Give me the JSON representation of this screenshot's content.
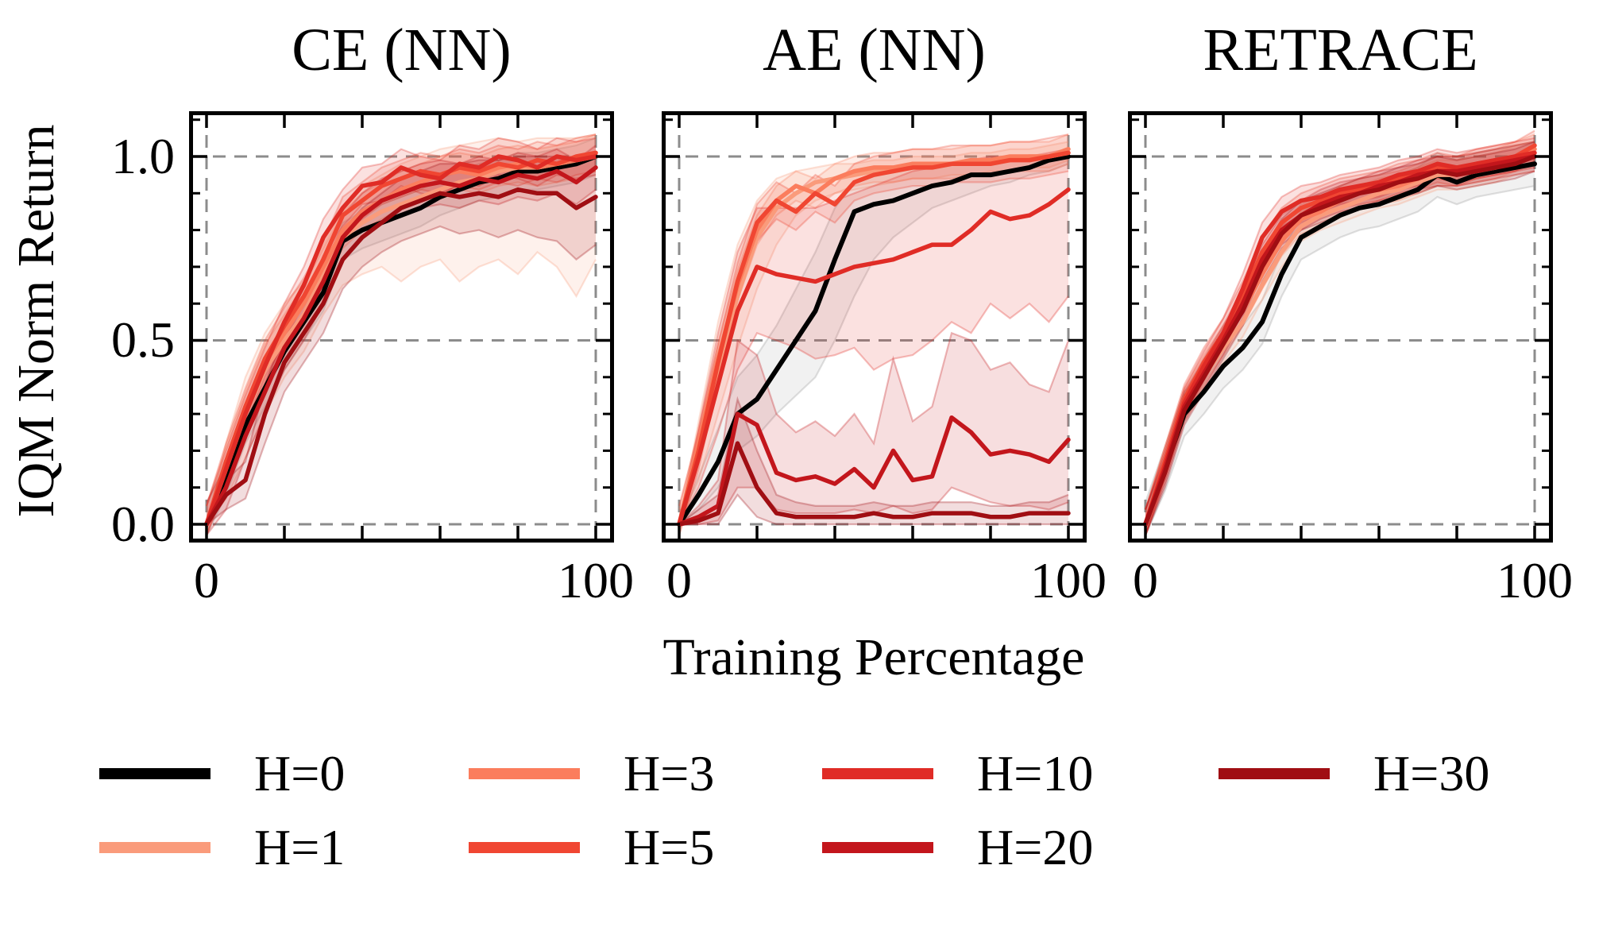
{
  "figure": {
    "ylabel": "IQM Norm Return",
    "xlabel": "Training Percentage",
    "ytick_labels": [
      "1.0",
      "0.5",
      "0.0"
    ],
    "xtick_labels": [
      "0",
      "100"
    ],
    "background": "#ffffff",
    "grid_color": "#8c8c8c",
    "grid_style": "dashed"
  },
  "legend": {
    "entries": [
      {
        "label": "H=0",
        "color": "#000000"
      },
      {
        "label": "H=1",
        "color": "#FA9B7B"
      },
      {
        "label": "H=3",
        "color": "#FB7D5D"
      },
      {
        "label": "H=5",
        "color": "#F04632"
      },
      {
        "label": "H=10",
        "color": "#E02C26"
      },
      {
        "label": "H=20",
        "color": "#C3161C"
      },
      {
        "label": "H=30",
        "color": "#A00E13"
      }
    ],
    "columns": [
      [
        0,
        1
      ],
      [
        2,
        3
      ],
      [
        4,
        5
      ],
      [
        6
      ]
    ],
    "position": "below"
  },
  "chart_data": [
    {
      "type": "line",
      "title": "CE (NN)",
      "xlim": [
        -4.7,
        104.7
      ],
      "ylim": [
        -0.047,
        1.123
      ],
      "xticks": [
        0,
        100
      ],
      "yticks": [
        0.0,
        0.5,
        1.0
      ],
      "grid": true,
      "x": [
        0,
        5,
        10,
        15,
        20,
        25,
        30,
        35,
        40,
        45,
        50,
        55,
        60,
        65,
        70,
        75,
        80,
        85,
        90,
        95,
        100
      ],
      "series": [
        {
          "name": "H=0",
          "color": "#000000",
          "band_color": "#999999",
          "band_pm": 0.05,
          "values": [
            0,
            0.13,
            0.27,
            0.37,
            0.47,
            0.55,
            0.63,
            0.77,
            0.8,
            0.82,
            0.84,
            0.86,
            0.89,
            0.91,
            0.93,
            0.94,
            0.96,
            0.96,
            0.97,
            0.98,
            1.0
          ]
        },
        {
          "name": "H=1",
          "color": "#FA9B7B",
          "values": [
            0,
            0.15,
            0.3,
            0.42,
            0.5,
            0.57,
            0.68,
            0.78,
            0.82,
            0.85,
            0.87,
            0.89,
            0.91,
            0.93,
            0.94,
            0.96,
            0.97,
            0.97,
            0.98,
            0.99,
            1.0
          ],
          "band_lo": [
            0,
            0.07,
            0.18,
            0.3,
            0.4,
            0.47,
            0.57,
            0.65,
            0.68,
            0.7,
            0.66,
            0.7,
            0.72,
            0.66,
            0.7,
            0.72,
            0.68,
            0.74,
            0.7,
            0.62,
            0.72
          ],
          "band_hi": [
            0,
            0.22,
            0.4,
            0.52,
            0.6,
            0.66,
            0.76,
            0.86,
            0.92,
            0.95,
            0.98,
            1.0,
            1.02,
            1.03,
            1.04,
            1.05,
            1.04,
            1.05,
            1.05,
            1.05,
            1.06
          ]
        },
        {
          "name": "H=3",
          "color": "#FB7D5D",
          "band_pm": 0.05,
          "values": [
            0,
            0.16,
            0.31,
            0.44,
            0.52,
            0.6,
            0.7,
            0.8,
            0.85,
            0.88,
            0.91,
            0.93,
            0.95,
            0.96,
            0.95,
            0.97,
            0.98,
            0.97,
            0.98,
            0.99,
            1.01
          ]
        },
        {
          "name": "H=5",
          "color": "#F04632",
          "band_pm": 0.05,
          "values": [
            0,
            0.17,
            0.32,
            0.45,
            0.54,
            0.62,
            0.72,
            0.84,
            0.88,
            0.92,
            0.94,
            0.96,
            0.95,
            0.97,
            0.96,
            0.98,
            0.97,
            0.99,
            0.98,
            1.0,
            1.01
          ]
        },
        {
          "name": "H=10",
          "color": "#E02C26",
          "band_pm": 0.05,
          "values": [
            0,
            0.15,
            0.3,
            0.43,
            0.55,
            0.65,
            0.78,
            0.86,
            0.92,
            0.93,
            0.97,
            0.95,
            0.94,
            0.98,
            0.97,
            1.0,
            0.99,
            0.97,
            1.0,
            0.99,
            1.0
          ]
        },
        {
          "name": "H=20",
          "color": "#C3161C",
          "band_pm": 0.06,
          "values": [
            0,
            0.1,
            0.24,
            0.36,
            0.48,
            0.56,
            0.66,
            0.78,
            0.84,
            0.88,
            0.9,
            0.92,
            0.93,
            0.92,
            0.94,
            0.93,
            0.95,
            0.94,
            0.96,
            0.93,
            0.97
          ]
        },
        {
          "name": "H=30",
          "color": "#A00E13",
          "values": [
            0,
            0.08,
            0.12,
            0.3,
            0.44,
            0.52,
            0.6,
            0.72,
            0.78,
            0.82,
            0.86,
            0.88,
            0.9,
            0.89,
            0.9,
            0.89,
            0.91,
            0.9,
            0.9,
            0.86,
            0.89
          ],
          "band_lo": [
            0,
            0.04,
            0.07,
            0.22,
            0.36,
            0.44,
            0.52,
            0.64,
            0.7,
            0.74,
            0.77,
            0.79,
            0.81,
            0.79,
            0.8,
            0.78,
            0.8,
            0.78,
            0.77,
            0.72,
            0.76
          ],
          "band_hi": [
            0,
            0.12,
            0.17,
            0.38,
            0.52,
            0.6,
            0.68,
            0.8,
            0.86,
            0.9,
            0.94,
            0.96,
            0.98,
            0.98,
            0.99,
            0.99,
            1.0,
            1.0,
            1.0,
            0.99,
            1.0
          ]
        }
      ]
    },
    {
      "type": "line",
      "title": "AE (NN)",
      "xlim": [
        -4.7,
        104.7
      ],
      "ylim": [
        -0.047,
        1.123
      ],
      "xticks": [
        0,
        100
      ],
      "yticks": [
        0.0,
        0.5,
        1.0
      ],
      "grid": true,
      "x": [
        0,
        5,
        10,
        15,
        20,
        25,
        30,
        35,
        40,
        45,
        50,
        55,
        60,
        65,
        70,
        75,
        80,
        85,
        90,
        95,
        100
      ],
      "series": [
        {
          "name": "H=0",
          "color": "#000000",
          "band_color": "#999999",
          "values": [
            0,
            0.08,
            0.17,
            0.3,
            0.34,
            0.42,
            0.5,
            0.58,
            0.72,
            0.85,
            0.87,
            0.88,
            0.9,
            0.92,
            0.93,
            0.95,
            0.95,
            0.96,
            0.97,
            0.99,
            1.0
          ],
          "band_lo": [
            0,
            0.04,
            0.1,
            0.2,
            0.24,
            0.3,
            0.35,
            0.4,
            0.5,
            0.62,
            0.72,
            0.78,
            0.82,
            0.86,
            0.88,
            0.9,
            0.92,
            0.93,
            0.95,
            0.96,
            0.98
          ],
          "band_hi": [
            0,
            0.13,
            0.26,
            0.4,
            0.46,
            0.54,
            0.64,
            0.74,
            0.86,
            0.93,
            0.95,
            0.96,
            0.97,
            0.97,
            0.98,
            0.98,
            0.99,
            0.99,
            1.0,
            1.0,
            1.01
          ]
        },
        {
          "name": "H=1",
          "color": "#FA9B7B",
          "values": [
            0,
            0.2,
            0.42,
            0.62,
            0.78,
            0.86,
            0.9,
            0.93,
            0.94,
            0.95,
            0.96,
            0.96,
            0.97,
            0.97,
            0.98,
            0.98,
            0.99,
            0.99,
            1.0,
            1.0,
            1.01
          ],
          "band_lo": [
            0,
            0.12,
            0.3,
            0.48,
            0.64,
            0.76,
            0.84,
            0.88,
            0.9,
            0.91,
            0.92,
            0.93,
            0.94,
            0.94,
            0.95,
            0.95,
            0.96,
            0.96,
            0.97,
            0.97,
            0.99
          ],
          "band_hi": [
            0,
            0.28,
            0.55,
            0.76,
            0.88,
            0.94,
            0.96,
            0.97,
            0.98,
            0.98,
            0.99,
            0.99,
            1.0,
            1.0,
            1.0,
            1.01,
            1.01,
            1.02,
            1.02,
            1.03,
            1.04
          ]
        },
        {
          "name": "H=3",
          "color": "#FB7D5D",
          "band_pm": 0.04,
          "values": [
            0,
            0.22,
            0.45,
            0.65,
            0.8,
            0.88,
            0.92,
            0.9,
            0.94,
            0.96,
            0.97,
            0.97,
            0.98,
            0.98,
            0.98,
            0.99,
            0.99,
            1.0,
            1.0,
            1.0,
            1.02
          ]
        },
        {
          "name": "H=5",
          "color": "#F04632",
          "band_pm": 0.05,
          "values": [
            0,
            0.2,
            0.44,
            0.66,
            0.82,
            0.88,
            0.85,
            0.9,
            0.87,
            0.93,
            0.95,
            0.96,
            0.97,
            0.97,
            0.98,
            0.98,
            0.98,
            0.99,
            0.99,
            1.0,
            1.01
          ]
        },
        {
          "name": "H=10",
          "color": "#E02C26",
          "values": [
            0,
            0.18,
            0.38,
            0.58,
            0.7,
            0.68,
            0.67,
            0.66,
            0.68,
            0.7,
            0.71,
            0.72,
            0.74,
            0.76,
            0.76,
            0.8,
            0.85,
            0.83,
            0.84,
            0.87,
            0.91
          ],
          "band_lo": [
            0,
            0.1,
            0.25,
            0.42,
            0.52,
            0.5,
            0.48,
            0.45,
            0.46,
            0.48,
            0.42,
            0.45,
            0.46,
            0.5,
            0.55,
            0.52,
            0.6,
            0.56,
            0.6,
            0.55,
            0.62
          ],
          "band_hi": [
            0,
            0.26,
            0.52,
            0.74,
            0.86,
            0.86,
            0.86,
            0.86,
            0.88,
            0.9,
            0.92,
            0.94,
            0.96,
            0.97,
            0.98,
            0.99,
            1.0,
            1.0,
            1.0,
            1.01,
            1.02
          ]
        },
        {
          "name": "H=20",
          "color": "#C3161C",
          "values": [
            0,
            0.02,
            0.05,
            0.3,
            0.27,
            0.14,
            0.12,
            0.13,
            0.11,
            0.15,
            0.1,
            0.2,
            0.12,
            0.13,
            0.29,
            0.25,
            0.19,
            0.2,
            0.19,
            0.17,
            0.23
          ],
          "band_lo": [
            0,
            0.0,
            0.01,
            0.1,
            0.1,
            0.04,
            0.03,
            0.03,
            0.03,
            0.04,
            0.03,
            0.05,
            0.03,
            0.04,
            0.1,
            0.08,
            0.06,
            0.05,
            0.05,
            0.04,
            0.06
          ],
          "band_hi": [
            0,
            0.05,
            0.12,
            0.5,
            0.46,
            0.3,
            0.25,
            0.28,
            0.24,
            0.3,
            0.22,
            0.45,
            0.28,
            0.32,
            0.52,
            0.5,
            0.42,
            0.44,
            0.38,
            0.36,
            0.5
          ]
        },
        {
          "name": "H=30",
          "color": "#A00E13",
          "values": [
            0,
            0.01,
            0.03,
            0.22,
            0.1,
            0.03,
            0.02,
            0.02,
            0.02,
            0.02,
            0.03,
            0.02,
            0.02,
            0.03,
            0.03,
            0.03,
            0.02,
            0.02,
            0.03,
            0.03,
            0.03
          ],
          "band_lo": [
            0,
            0,
            0,
            0.08,
            0.02,
            0,
            0,
            0,
            0,
            0,
            0,
            0,
            0,
            0,
            0,
            0,
            0,
            0,
            0,
            0,
            0
          ],
          "band_hi": [
            0,
            0.04,
            0.08,
            0.34,
            0.2,
            0.08,
            0.06,
            0.05,
            0.05,
            0.05,
            0.06,
            0.05,
            0.05,
            0.06,
            0.06,
            0.06,
            0.05,
            0.05,
            0.06,
            0.06,
            0.08
          ]
        }
      ]
    },
    {
      "type": "line",
      "title": "RETRACE",
      "xlim": [
        -4.7,
        104.7
      ],
      "ylim": [
        -0.047,
        1.123
      ],
      "xticks": [
        0,
        100
      ],
      "yticks": [
        0.0,
        0.5,
        1.0
      ],
      "grid": true,
      "x": [
        0,
        5,
        10,
        15,
        20,
        25,
        30,
        35,
        40,
        45,
        50,
        55,
        60,
        65,
        70,
        75,
        80,
        85,
        90,
        95,
        100
      ],
      "series": [
        {
          "name": "H=0",
          "color": "#000000",
          "band_color": "#999999",
          "band_pm": 0.06,
          "values": [
            0,
            0.15,
            0.3,
            0.36,
            0.43,
            0.48,
            0.55,
            0.68,
            0.78,
            0.81,
            0.84,
            0.86,
            0.87,
            0.89,
            0.91,
            0.95,
            0.93,
            0.95,
            0.96,
            0.97,
            0.98
          ]
        },
        {
          "name": "H=1",
          "color": "#FA9B7B",
          "band_pm": 0.04,
          "values": [
            0,
            0.16,
            0.32,
            0.4,
            0.48,
            0.55,
            0.65,
            0.74,
            0.81,
            0.84,
            0.86,
            0.88,
            0.9,
            0.91,
            0.93,
            0.95,
            0.95,
            0.96,
            0.97,
            0.99,
            1.0
          ]
        },
        {
          "name": "H=3",
          "color": "#FB7D5D",
          "band_pm": 0.04,
          "values": [
            0,
            0.17,
            0.33,
            0.42,
            0.5,
            0.58,
            0.68,
            0.77,
            0.83,
            0.85,
            0.88,
            0.9,
            0.91,
            0.92,
            0.94,
            0.96,
            0.96,
            0.97,
            0.98,
            1.0,
            1.02
          ]
        },
        {
          "name": "H=5",
          "color": "#F04632",
          "band_pm": 0.04,
          "values": [
            0,
            0.17,
            0.34,
            0.44,
            0.52,
            0.62,
            0.74,
            0.82,
            0.86,
            0.88,
            0.9,
            0.91,
            0.92,
            0.94,
            0.95,
            0.97,
            0.96,
            0.98,
            0.99,
            1.0,
            1.03
          ]
        },
        {
          "name": "H=10",
          "color": "#E02C26",
          "band_pm": 0.04,
          "values": [
            0,
            0.16,
            0.33,
            0.43,
            0.52,
            0.64,
            0.78,
            0.85,
            0.88,
            0.89,
            0.91,
            0.92,
            0.93,
            0.95,
            0.96,
            0.98,
            0.97,
            0.98,
            0.99,
            1.0,
            1.01
          ]
        },
        {
          "name": "H=20",
          "color": "#C3161C",
          "band_pm": 0.04,
          "values": [
            0,
            0.15,
            0.32,
            0.41,
            0.5,
            0.6,
            0.72,
            0.8,
            0.84,
            0.87,
            0.89,
            0.9,
            0.92,
            0.93,
            0.95,
            0.96,
            0.96,
            0.97,
            0.98,
            0.99,
            1.0
          ]
        },
        {
          "name": "H=30",
          "color": "#A00E13",
          "band_pm": 0.04,
          "values": [
            0,
            0.14,
            0.31,
            0.4,
            0.49,
            0.58,
            0.7,
            0.79,
            0.84,
            0.86,
            0.88,
            0.9,
            0.91,
            0.93,
            0.94,
            0.96,
            0.95,
            0.96,
            0.97,
            0.98,
            1.0
          ]
        }
      ]
    }
  ]
}
